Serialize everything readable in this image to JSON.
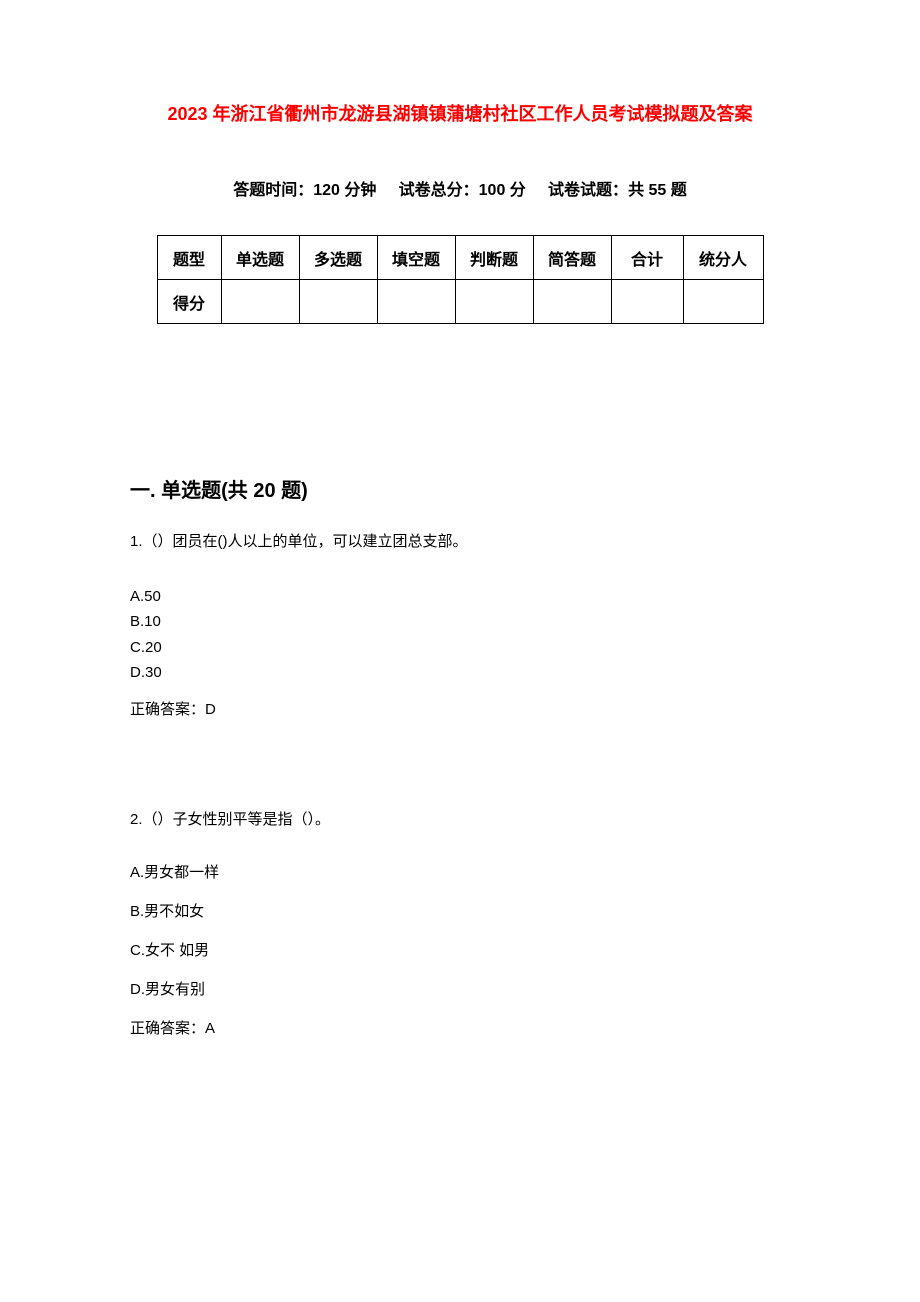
{
  "title": "2023 年浙江省衢州市龙游县湖镇镇蒲塘村社区工作人员考试模拟题及答案",
  "exam_info": {
    "time_label": "答题时间：",
    "time_value": "120 分钟",
    "total_label": "试卷总分：",
    "total_value": "100 分",
    "count_label": "试卷试题：",
    "count_value": "共 55 题"
  },
  "score_table": {
    "row_labels": [
      "题型",
      "得分"
    ],
    "columns": [
      "单选题",
      "多选题",
      "填空题",
      "判断题",
      "简答题",
      "合计",
      "统分人"
    ]
  },
  "section1": {
    "heading": "一. 单选题(共 20 题)",
    "questions": [
      {
        "number": "1.（）",
        "text": "团员在()人以上的单位，可以建立团总支部。",
        "options": [
          "A.50",
          "B.10",
          "C.20",
          "D.30"
        ],
        "answer_label": "正确答案：",
        "answer_value": "D"
      },
      {
        "number": "2.（）",
        "text": "子女性别平等是指（）。",
        "options": [
          "A.男女都一样",
          "B.男不如女",
          "C.女不  如男",
          "D.男女有别"
        ],
        "answer_label": "正确答案：",
        "answer_value": "A"
      }
    ]
  }
}
